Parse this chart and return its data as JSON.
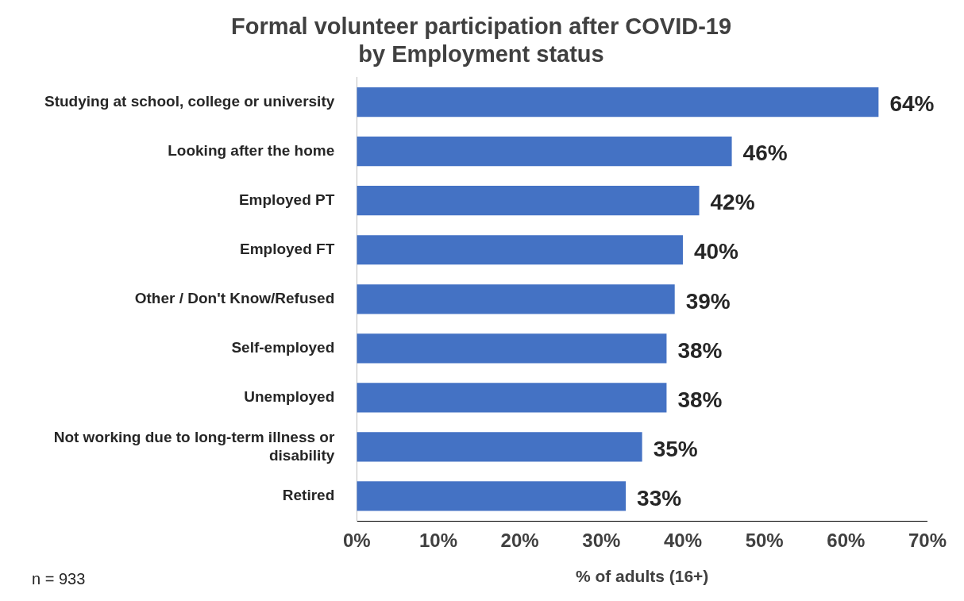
{
  "chart_data": {
    "type": "bar",
    "orientation": "horizontal",
    "title": "Formal volunteer participation after COVID-19 by Employment status",
    "xlabel": "% of adults (16+)",
    "categories": [
      "Studying at school, college or university",
      "Looking after the home",
      "Employed PT",
      "Employed FT",
      "Other / Don't Know/Refused",
      "Self-employed",
      "Unemployed",
      "Not working due to long-term illness or disability",
      "Retired"
    ],
    "values": [
      64,
      46,
      42,
      40,
      39,
      38,
      38,
      35,
      33
    ],
    "value_labels": [
      "64%",
      "46%",
      "42%",
      "40%",
      "39%",
      "38%",
      "38%",
      "35%",
      "33%"
    ],
    "color": "#4472c4",
    "xlim": [
      0,
      70
    ],
    "xticks": [
      {
        "value": 0,
        "label": "0%"
      },
      {
        "value": 10,
        "label": "10%"
      },
      {
        "value": 20,
        "label": "20%"
      },
      {
        "value": 30,
        "label": "30%"
      },
      {
        "value": 40,
        "label": "40%"
      },
      {
        "value": 50,
        "label": "50%"
      },
      {
        "value": 60,
        "label": "60%"
      },
      {
        "value": 70,
        "label": "70%"
      }
    ],
    "grid": false,
    "legend": false,
    "annotations": [
      "n = 933"
    ]
  }
}
